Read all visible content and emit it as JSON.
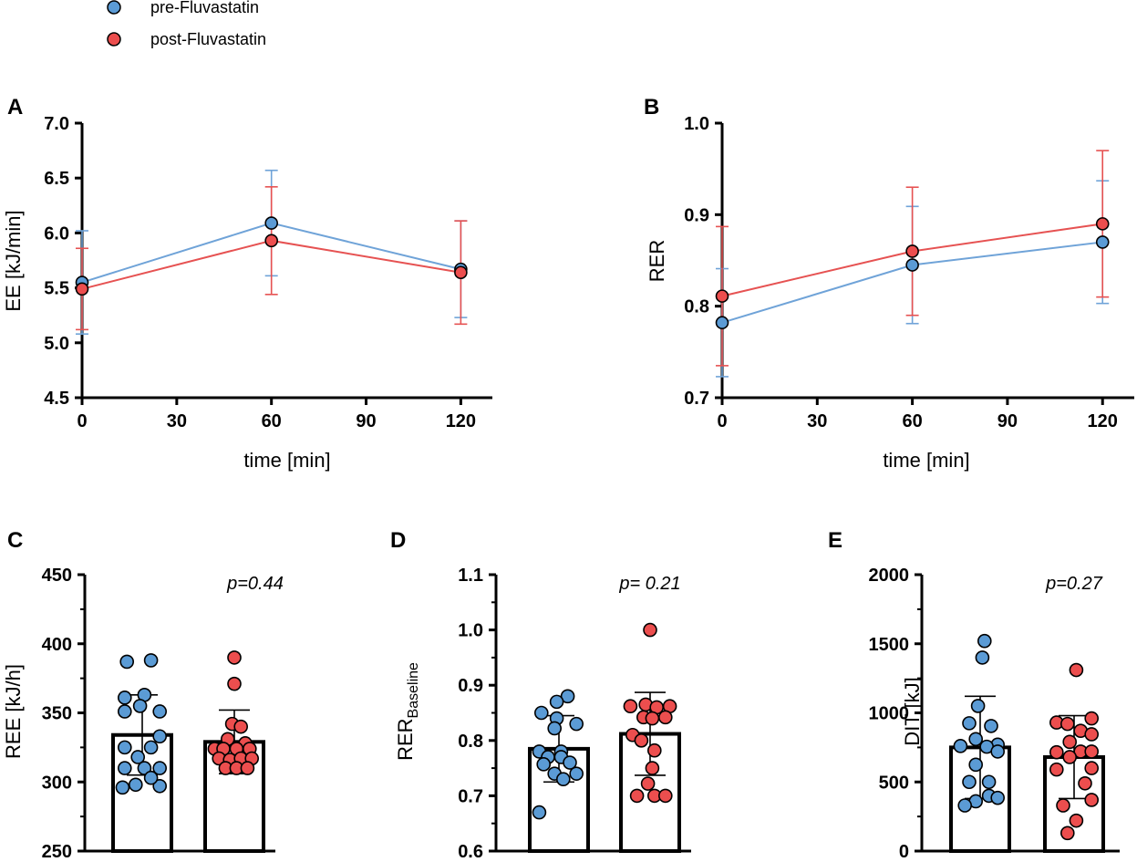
{
  "colors": {
    "pre": "#6fa3d8",
    "post": "#e65252",
    "pre_fill": "#5b9bd5",
    "post_fill": "#ec4e4e",
    "axis": "#000000"
  },
  "legend": [
    {
      "label": "pre-Fluvastatin",
      "series": "pre"
    },
    {
      "label": "post-Fluvastatin",
      "series": "post"
    }
  ],
  "chart_data": [
    {
      "id": "A",
      "type": "line",
      "panel_label": "A",
      "xlabel": "time [min]",
      "ylabel": "EE [kJ/min]",
      "xlim": [
        0,
        130
      ],
      "ylim": [
        4.5,
        7.0
      ],
      "xticks": [
        "0",
        "30",
        "60",
        "90",
        "120"
      ],
      "xtick_values": [
        0,
        30,
        60,
        90,
        120
      ],
      "yticks": [
        "4.5",
        "5.0",
        "5.5",
        "6.0",
        "6.5",
        "7.0"
      ],
      "ytick_values": [
        4.5,
        5.0,
        5.5,
        6.0,
        6.5,
        7.0
      ],
      "x": [
        0,
        60,
        120
      ],
      "series": [
        {
          "name": "pre-Fluvastatin",
          "key": "pre",
          "values": [
            5.55,
            6.09,
            5.67
          ],
          "err": [
            0.47,
            0.48,
            0.44
          ]
        },
        {
          "name": "post-Fluvastatin",
          "key": "post",
          "values": [
            5.49,
            5.93,
            5.64
          ],
          "err": [
            0.37,
            0.49,
            0.47
          ]
        }
      ]
    },
    {
      "id": "B",
      "type": "line",
      "panel_label": "B",
      "xlabel": "time [min]",
      "ylabel": "RER",
      "xlim": [
        0,
        130
      ],
      "ylim": [
        0.7,
        1.0
      ],
      "xticks": [
        "0",
        "30",
        "60",
        "90",
        "120"
      ],
      "xtick_values": [
        0,
        30,
        60,
        90,
        120
      ],
      "yticks": [
        "0.7",
        "0.8",
        "0.9",
        "1.0"
      ],
      "ytick_values": [
        0.7,
        0.8,
        0.9,
        1.0
      ],
      "x": [
        0,
        60,
        120
      ],
      "series": [
        {
          "name": "pre-Fluvastatin",
          "key": "pre",
          "values": [
            0.782,
            0.845,
            0.87
          ],
          "err": [
            0.059,
            0.064,
            0.067
          ]
        },
        {
          "name": "post-Fluvastatin",
          "key": "post",
          "values": [
            0.811,
            0.86,
            0.89
          ],
          "err": [
            0.076,
            0.07,
            0.08
          ]
        }
      ]
    },
    {
      "id": "C",
      "type": "bar",
      "panel_label": "C",
      "ylabel": "REE [kJ/h]",
      "ylabel_sub": "",
      "ylim": [
        250,
        450
      ],
      "yticks": [
        "250",
        "300",
        "350",
        "400",
        "450"
      ],
      "ytick_values": [
        250,
        300,
        350,
        400,
        450
      ],
      "p_text": "p=0.44",
      "groups": [
        {
          "name": "pre-Fluvastatin",
          "key": "pre",
          "mean": 334,
          "sd": 29,
          "points": [
            [
              -0.35,
              387
            ],
            [
              0.2,
              388
            ],
            [
              -0.4,
              361
            ],
            [
              0.05,
              363
            ],
            [
              -0.05,
              355
            ],
            [
              -0.4,
              351
            ],
            [
              0.4,
              351
            ],
            [
              -0.4,
              325
            ],
            [
              0.2,
              325
            ],
            [
              0.4,
              333
            ],
            [
              -0.1,
              318
            ],
            [
              -0.4,
              310
            ],
            [
              0.4,
              310
            ],
            [
              0.05,
              310
            ],
            [
              -0.15,
              298
            ],
            [
              0.4,
              297
            ],
            [
              -0.45,
              296
            ],
            [
              0.2,
              303
            ]
          ]
        },
        {
          "name": "post-Fluvastatin",
          "key": "post",
          "mean": 329,
          "sd": 23,
          "points": [
            [
              0,
              390
            ],
            [
              0,
              371
            ],
            [
              -0.05,
              342
            ],
            [
              0.15,
              340
            ],
            [
              -0.15,
              331
            ],
            [
              0.25,
              328
            ],
            [
              -0.45,
              324
            ],
            [
              -0.25,
              324
            ],
            [
              0.05,
              324
            ],
            [
              0.35,
              324
            ],
            [
              -0.35,
              317
            ],
            [
              -0.1,
              316
            ],
            [
              0.15,
              317
            ],
            [
              0.4,
              317
            ],
            [
              -0.2,
              310
            ],
            [
              0.05,
              310
            ],
            [
              0.3,
              310
            ]
          ]
        }
      ]
    },
    {
      "id": "D",
      "type": "bar",
      "panel_label": "D",
      "ylabel": "RER",
      "ylabel_sub": "Baseline",
      "ylim": [
        0.6,
        1.1
      ],
      "yticks": [
        "0.6",
        "0.7",
        "0.8",
        "0.9",
        "1.0",
        "1.1"
      ],
      "ytick_values": [
        0.6,
        0.7,
        0.8,
        0.9,
        1.0,
        1.1
      ],
      "p_text": "p= 0.21",
      "groups": [
        {
          "name": "pre-Fluvastatin",
          "key": "pre",
          "mean": 0.785,
          "sd": 0.06,
          "points": [
            [
              0.2,
              0.88
            ],
            [
              -0.05,
              0.87
            ],
            [
              -0.4,
              0.85
            ],
            [
              -0.05,
              0.84
            ],
            [
              0.4,
              0.83
            ],
            [
              -0.1,
              0.822
            ],
            [
              -0.45,
              0.78
            ],
            [
              0.05,
              0.78
            ],
            [
              -0.25,
              0.77
            ],
            [
              0.05,
              0.77
            ],
            [
              -0.35,
              0.757
            ],
            [
              0.25,
              0.76
            ],
            [
              -0.1,
              0.74
            ],
            [
              0.4,
              0.74
            ],
            [
              0.1,
              0.73
            ],
            [
              -0.45,
              0.67
            ]
          ]
        },
        {
          "name": "post-Fluvastatin",
          "key": "post",
          "mean": 0.812,
          "sd": 0.075,
          "points": [
            [
              0,
              1.0
            ],
            [
              -0.45,
              0.862
            ],
            [
              -0.1,
              0.865
            ],
            [
              0.15,
              0.86
            ],
            [
              0.45,
              0.862
            ],
            [
              -0.15,
              0.842
            ],
            [
              0.05,
              0.84
            ],
            [
              0.35,
              0.842
            ],
            [
              -0.4,
              0.81
            ],
            [
              -0.2,
              0.8
            ],
            [
              0.1,
              0.782
            ],
            [
              0.05,
              0.75
            ],
            [
              -0.05,
              0.722
            ],
            [
              -0.3,
              0.7
            ],
            [
              0.1,
              0.7
            ],
            [
              0.35,
              0.7
            ]
          ]
        }
      ]
    },
    {
      "id": "E",
      "type": "bar",
      "panel_label": "E",
      "ylabel": "DIT [kJ]",
      "ylabel_sub": "",
      "ylim": [
        0,
        2000
      ],
      "yticks": [
        "0",
        "500",
        "1000",
        "1500",
        "2000"
      ],
      "ytick_values": [
        0,
        500,
        1000,
        1500,
        2000
      ],
      "p_text": "p=0.27",
      "groups": [
        {
          "name": "pre-Fluvastatin",
          "key": "pre",
          "mean": 750,
          "sd": 370,
          "points": [
            [
              0.1,
              1520
            ],
            [
              0.05,
              1400
            ],
            [
              -0.05,
              1050
            ],
            [
              -0.25,
              925
            ],
            [
              0.25,
              905
            ],
            [
              -0.1,
              810
            ],
            [
              0.4,
              770
            ],
            [
              -0.45,
              760
            ],
            [
              0.15,
              755
            ],
            [
              0.4,
              720
            ],
            [
              -0.1,
              625
            ],
            [
              -0.25,
              500
            ],
            [
              0.2,
              500
            ],
            [
              0.2,
              400
            ],
            [
              0.4,
              385
            ],
            [
              -0.1,
              360
            ],
            [
              -0.35,
              330
            ]
          ]
        },
        {
          "name": "post-Fluvastatin",
          "key": "post",
          "mean": 680,
          "sd": 300,
          "points": [
            [
              0.05,
              1310
            ],
            [
              -0.4,
              930
            ],
            [
              -0.15,
              920
            ],
            [
              0.4,
              960
            ],
            [
              0.15,
              870
            ],
            [
              0.4,
              845
            ],
            [
              -0.1,
              790
            ],
            [
              -0.4,
              715
            ],
            [
              0.15,
              720
            ],
            [
              -0.1,
              680
            ],
            [
              0.4,
              720
            ],
            [
              -0.4,
              590
            ],
            [
              0.4,
              600
            ],
            [
              0.25,
              490
            ],
            [
              0.4,
              370
            ],
            [
              -0.25,
              330
            ],
            [
              0.05,
              220
            ],
            [
              -0.15,
              130
            ]
          ]
        }
      ]
    }
  ]
}
